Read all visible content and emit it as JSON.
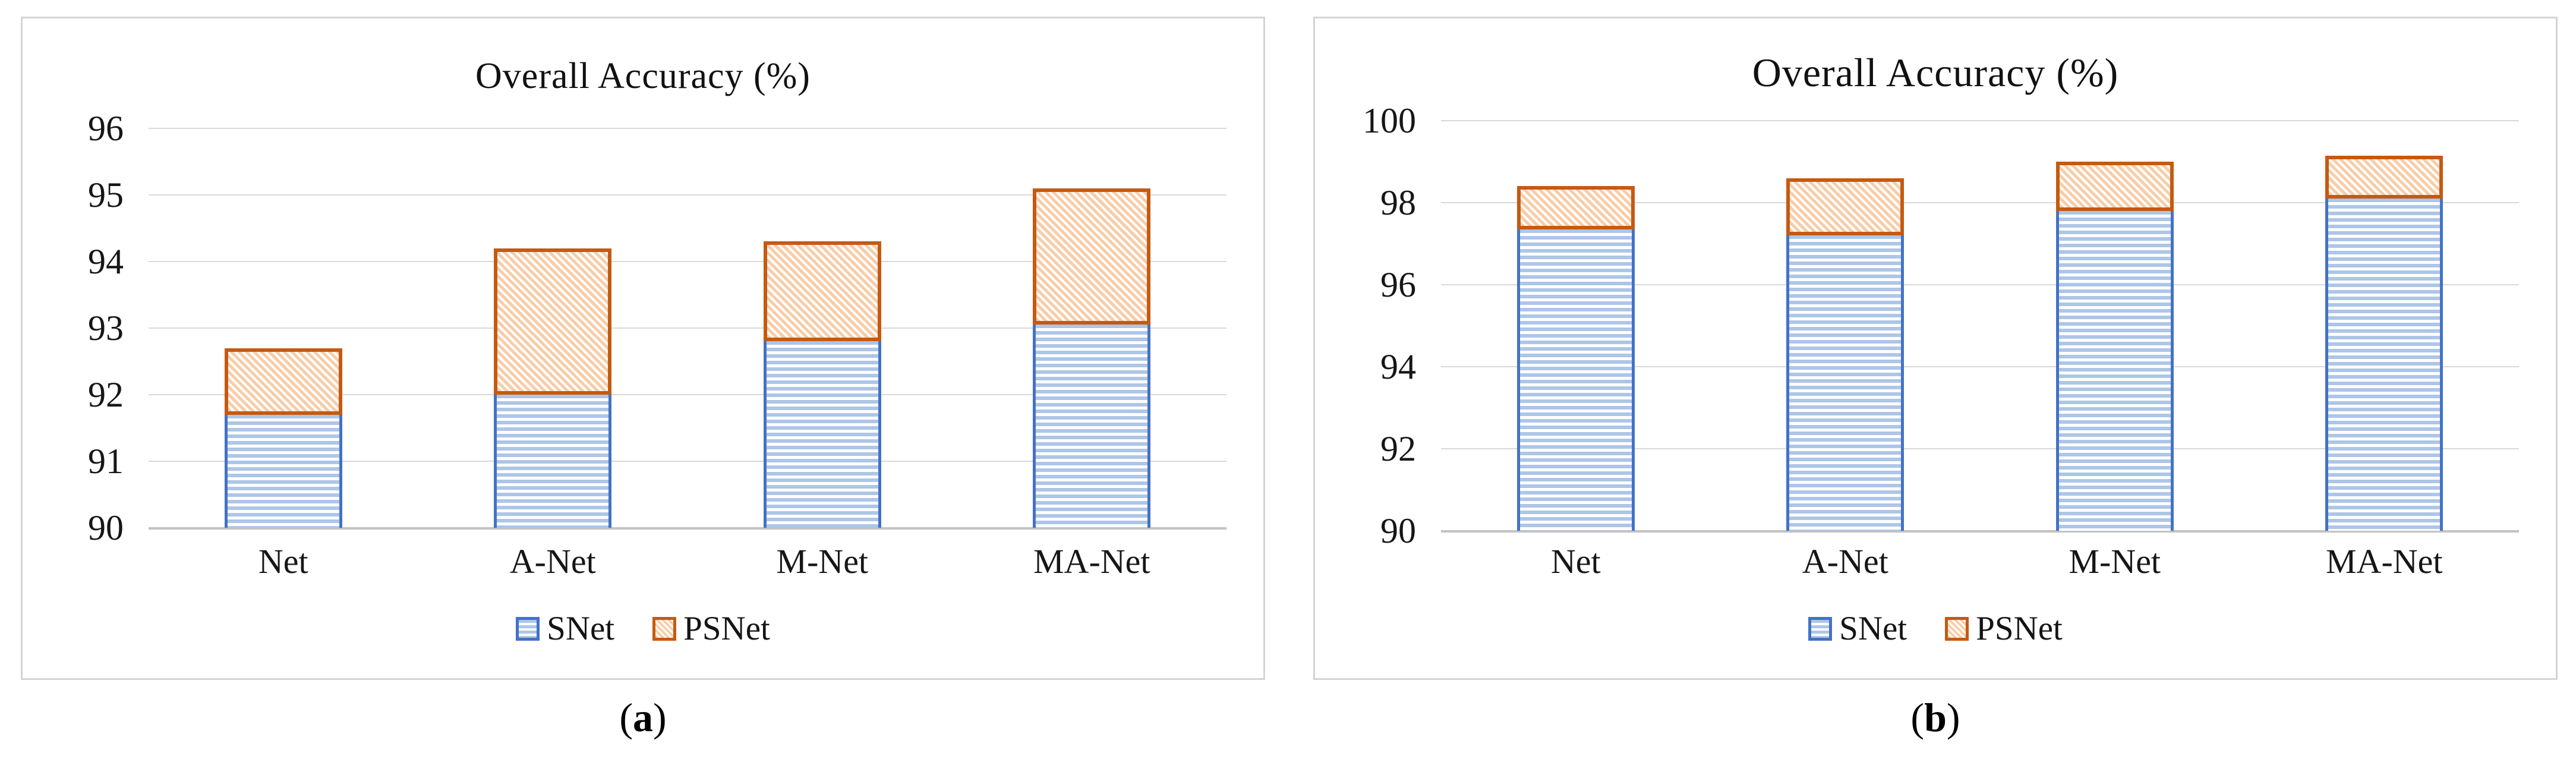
{
  "colors": {
    "snet_border": "#4472c4",
    "snet_fill": "#adc6e8",
    "psnet_border": "#c55a11",
    "psnet_fill": "#f7cda8",
    "grid_color": "#d9d9d9",
    "axis_color": "#c2c2c2",
    "panel_border": "#d4d4d4"
  },
  "captions": [
    {
      "open": "(",
      "letter": "a",
      "close": ")"
    },
    {
      "open": "(",
      "letter": "b",
      "close": ")"
    }
  ],
  "chart_data": [
    {
      "type": "bar",
      "subtype": "overlapped-range",
      "title": "Overall Accuracy (%)",
      "categories": [
        "Net",
        "A-Net",
        "M-Net",
        "MA-Net"
      ],
      "series": [
        {
          "name": "SNet",
          "values": [
            91.7,
            92.0,
            92.8,
            93.05
          ]
        },
        {
          "name": "PSNet",
          "values": [
            92.7,
            94.2,
            94.3,
            95.1
          ]
        }
      ],
      "note": "PSNet segment drawn from SNet value up to PSNet value",
      "xlabel": "",
      "ylabel": "",
      "ylim": [
        90,
        96
      ],
      "yticks": [
        90,
        91,
        92,
        93,
        94,
        95,
        96
      ],
      "grid": true,
      "legend_position": "bottom",
      "panel_label": "(a)"
    },
    {
      "type": "bar",
      "subtype": "overlapped-range",
      "title": "Overall Accuracy (%)",
      "categories": [
        "Net",
        "A-Net",
        "M-Net",
        "MA-Net"
      ],
      "series": [
        {
          "name": "SNet",
          "values": [
            97.35,
            97.2,
            97.8,
            98.1
          ]
        },
        {
          "name": "PSNet",
          "values": [
            98.4,
            98.6,
            99.0,
            99.15
          ]
        }
      ],
      "note": "PSNet segment drawn from SNet value up to PSNet value",
      "xlabel": "",
      "ylabel": "",
      "ylim": [
        90,
        100
      ],
      "yticks": [
        90,
        92,
        94,
        96,
        98,
        100
      ],
      "grid": true,
      "legend_position": "bottom",
      "panel_label": "(b)"
    }
  ]
}
